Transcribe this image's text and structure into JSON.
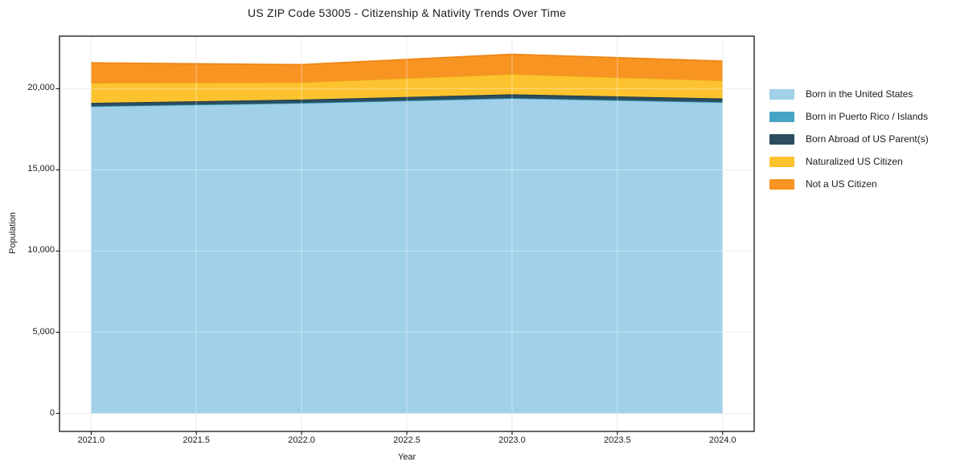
{
  "title": "US ZIP Code 53005 - Citizenship & Nativity Trends Over Time",
  "chart_data": {
    "type": "area",
    "stacked": true,
    "title": "US ZIP Code 53005 - Citizenship & Nativity Trends Over Time",
    "xlabel": "Year",
    "ylabel": "Population",
    "x": [
      2021,
      2022,
      2023,
      2024
    ],
    "series": [
      {
        "name": "Born in the United States",
        "color": "#A0D1E8",
        "edge": "#7EB8D8",
        "values": [
          18900,
          19100,
          19400,
          19150
        ]
      },
      {
        "name": "Born in Puerto Rico / Islands",
        "color": "#46A5C4",
        "edge": "#2F8FAD",
        "values": [
          20,
          20,
          20,
          20
        ]
      },
      {
        "name": "Born Abroad of US Parent(s)",
        "color": "#2B4D5E",
        "edge": "#1B3847",
        "values": [
          200,
          210,
          230,
          230
        ]
      },
      {
        "name": "Naturalized US Citizen",
        "color": "#FCC32F",
        "edge": "#EFA91C",
        "values": [
          1230,
          1060,
          1240,
          1090
        ]
      },
      {
        "name": "Not a US Citizen",
        "color": "#F79422",
        "edge": "#EE8412",
        "values": [
          1240,
          1090,
          1230,
          1210
        ]
      }
    ],
    "xlim": [
      2020.85,
      2024.15
    ],
    "ylim": [
      -1106,
      23232
    ],
    "xticks": {
      "values": [
        2021.0,
        2021.5,
        2022.0,
        2022.5,
        2023.0,
        2023.5,
        2024.0
      ],
      "labels": [
        "2021.0",
        "2021.5",
        "2022.0",
        "2022.5",
        "2023.0",
        "2023.5",
        "2024.0"
      ]
    },
    "yticks": {
      "values": [
        0,
        5000,
        10000,
        15000,
        20000
      ],
      "labels": [
        "0",
        "5,000",
        "10,000",
        "15,000",
        "20,000"
      ]
    },
    "grid": true,
    "legend_position": "right-outside",
    "colors": {
      "grid_under": "#E2E2E2",
      "grid_over": "rgba(255,255,255,0.35)",
      "spine": "#000000"
    }
  }
}
